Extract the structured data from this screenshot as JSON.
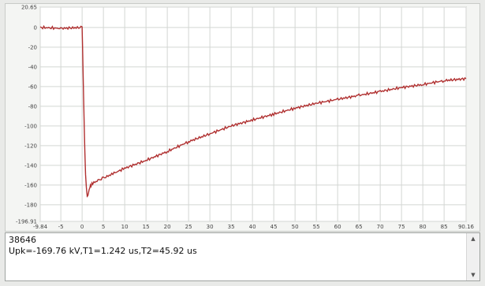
{
  "chart_data": {
    "type": "line",
    "title": "",
    "xlabel": "",
    "ylabel": "",
    "xlim": [
      -9.84,
      90.16
    ],
    "ylim": [
      -196.91,
      20.65
    ],
    "x_ticks": [
      -9.84,
      -5,
      0,
      5,
      10,
      15,
      20,
      25,
      30,
      35,
      40,
      45,
      50,
      55,
      60,
      65,
      70,
      75,
      80,
      85,
      90.16
    ],
    "x_tick_labels": [
      "-9.84",
      "-5",
      "0",
      "5",
      "10",
      "15",
      "20",
      "25",
      "30",
      "35",
      "40",
      "45",
      "50",
      "55",
      "60",
      "65",
      "70",
      "75",
      "80",
      "85",
      "90.16"
    ],
    "y_ticks": [
      20.65,
      0,
      -20,
      -40,
      -60,
      -80,
      -100,
      -120,
      -140,
      -160,
      -180,
      -196.91
    ],
    "y_tick_labels": [
      "20.65",
      "0",
      "-20",
      "-40",
      "-60",
      "-80",
      "-100",
      "-120",
      "-140",
      "-160",
      "-180",
      "-196.91"
    ],
    "grid": true,
    "legend": "none",
    "line_color": "#b03030",
    "series": [
      {
        "x": [
          -9.84,
          -5,
          0,
          0.2,
          0.5,
          0.8,
          1.2,
          1.5,
          1.8,
          2.1,
          2.5,
          3,
          4,
          5,
          7.5,
          10,
          15,
          20,
          25,
          30,
          35,
          40,
          45,
          50,
          55,
          60,
          65,
          70,
          75,
          80,
          85,
          90.16
        ],
        "y": [
          0,
          -1,
          0,
          -40,
          -100,
          -150,
          -172,
          -168,
          -162,
          -160,
          -158,
          -157,
          -155,
          -153,
          -148,
          -143,
          -135,
          -126,
          -116,
          -108,
          -100,
          -94,
          -88,
          -82,
          -77,
          -73,
          -69,
          -65,
          -61,
          -58,
          -54,
          -52
        ]
      }
    ]
  },
  "info": {
    "line1": "38646",
    "line2": "Upk=-169.76 kV,T1=1.242 us,T2=45.92 us"
  },
  "scroll": {
    "up_icon": "▲",
    "down_icon": "▼"
  }
}
